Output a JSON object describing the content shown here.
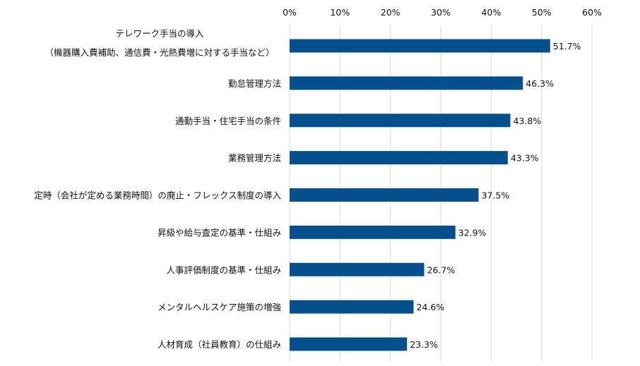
{
  "chart_data": {
    "type": "bar",
    "orientation": "horizontal",
    "categories": [
      [
        "テレワーク手当の導入",
        "（機器購入費補助、通信費・光熱費増に対する手当など）"
      ],
      [
        "勤怠管理方法"
      ],
      [
        "通勤手当・住宅手当の条件"
      ],
      [
        "業務管理方法"
      ],
      [
        "定時（会社が定める業務時間）の廃止・フレックス制度の導入"
      ],
      [
        "昇級や給与査定の基準・仕組み"
      ],
      [
        "人事評価制度の基準・仕組み"
      ],
      [
        "メンタルヘルスケア施策の増強"
      ],
      [
        "人材育成（社員教育）の仕組み"
      ]
    ],
    "values": [
      51.7,
      46.3,
      43.8,
      43.3,
      37.5,
      32.9,
      26.7,
      24.6,
      23.3
    ],
    "value_labels": [
      "51.7%",
      "46.3%",
      "43.8%",
      "43.3%",
      "37.5%",
      "32.9%",
      "26.7%",
      "24.6%",
      "23.3%"
    ],
    "xlim": [
      0,
      60
    ],
    "xticks": [
      "0%",
      "10%",
      "20%",
      "30%",
      "40%",
      "50%",
      "60%"
    ],
    "x_axis_position": "top",
    "grid": true,
    "bar_color": "#05508c",
    "title": "",
    "xlabel": "",
    "ylabel": ""
  }
}
